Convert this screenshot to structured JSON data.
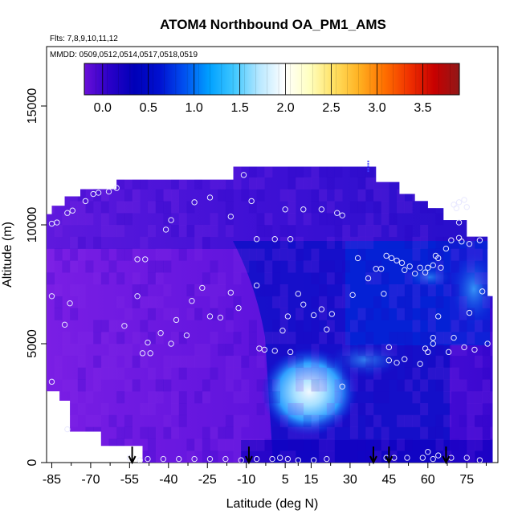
{
  "chart_data": {
    "type": "heatmap",
    "title": "ATOM4 Northbound OA_PM1_AMS",
    "subtitle_line1": "Flts: 7,8,9,10,11,12",
    "subtitle_line2": "MMDD: 0509,0512,0514,0517,0518,0519",
    "xlabel": "Latitude (deg N)",
    "ylabel": "Altitude (m)",
    "xlim": [
      -87,
      87
    ],
    "ylim": [
      0,
      17500
    ],
    "x_ticks": [
      -85,
      -70,
      -55,
      -40,
      -25,
      -10,
      5,
      15,
      30,
      45,
      60,
      75
    ],
    "x_tick_labels": [
      "-85",
      "-70",
      "-55",
      "-40",
      "-25",
      "-10",
      "5",
      "15",
      "30",
      "45",
      "60",
      "75"
    ],
    "x_minor_ticks": [
      -77.5,
      -62.5,
      -47.5,
      -32.5,
      -17.5,
      -2.5,
      10,
      22.5,
      37.5,
      52.5,
      67.5,
      82.5
    ],
    "y_ticks": [
      0,
      5000,
      10000,
      15000
    ],
    "y_tick_labels": [
      "0",
      "5000",
      "10000",
      "15000"
    ],
    "colorbar": {
      "min": -0.2,
      "max": 3.9,
      "ticks": [
        0.0,
        0.5,
        1.0,
        1.5,
        2.0,
        2.5,
        3.0,
        3.5
      ],
      "tick_labels": [
        "0.0",
        "0.5",
        "1.0",
        "1.5",
        "2.0",
        "2.5",
        "3.0",
        "3.5"
      ],
      "colors": [
        "#6a0fd8",
        "#2a00c8",
        "#0000b8",
        "#0010d0",
        "#0050f0",
        "#00a0ff",
        "#40c8ff",
        "#b8e8ff",
        "#ffffff",
        "#ffffc0",
        "#ffe060",
        "#ffb020",
        "#ff7000",
        "#f03000",
        "#c80000",
        "#901818"
      ]
    },
    "arrow_latitudes": [
      -54,
      -9,
      39,
      45,
      67
    ],
    "sample_points": [
      [
        -85,
        10050
      ],
      [
        -83,
        10100
      ],
      [
        -79,
        10500
      ],
      [
        -77,
        10600
      ],
      [
        -72,
        11000
      ],
      [
        -69,
        11300
      ],
      [
        -67,
        11350
      ],
      [
        -63,
        11400
      ],
      [
        -60,
        11550
      ],
      [
        -39,
        10200
      ],
      [
        -41,
        9800
      ],
      [
        -30,
        10950
      ],
      [
        -24,
        11150
      ],
      [
        -11,
        12100
      ],
      [
        -16,
        10350
      ],
      [
        -8,
        11000
      ],
      [
        -6,
        9400
      ],
      [
        1,
        9400
      ],
      [
        7,
        9400
      ],
      [
        5,
        10650
      ],
      [
        12,
        10650
      ],
      [
        19,
        10650
      ],
      [
        25,
        10500
      ],
      [
        27,
        10400
      ],
      [
        -85,
        7000
      ],
      [
        -80,
        5800
      ],
      [
        -78,
        6700
      ],
      [
        -57,
        5750
      ],
      [
        -52,
        8550
      ],
      [
        -49,
        8550
      ],
      [
        -52,
        7000
      ],
      [
        -50,
        4600
      ],
      [
        -48,
        5050
      ],
      [
        -47,
        4600
      ],
      [
        -43,
        5450
      ],
      [
        -39,
        5000
      ],
      [
        -37,
        6000
      ],
      [
        -33,
        5350
      ],
      [
        -31,
        6800
      ],
      [
        -27,
        7350
      ],
      [
        -24,
        6150
      ],
      [
        -20,
        6100
      ],
      [
        -16,
        7150
      ],
      [
        -13,
        6500
      ],
      [
        -6,
        7450
      ],
      [
        -5,
        4800
      ],
      [
        -3,
        4750
      ],
      [
        1,
        4700
      ],
      [
        4,
        5550
      ],
      [
        6,
        6150
      ],
      [
        7,
        4650
      ],
      [
        10,
        7100
      ],
      [
        12,
        6650
      ],
      [
        16,
        6200
      ],
      [
        19,
        6450
      ],
      [
        21,
        5600
      ],
      [
        23,
        6250
      ],
      [
        33,
        8600
      ],
      [
        37,
        7750
      ],
      [
        40,
        8150
      ],
      [
        42,
        8150
      ],
      [
        44,
        8700
      ],
      [
        46,
        8600
      ],
      [
        48,
        8500
      ],
      [
        50,
        8400
      ],
      [
        51,
        8100
      ],
      [
        53,
        8250
      ],
      [
        55,
        7950
      ],
      [
        57,
        8200
      ],
      [
        59,
        8000
      ],
      [
        60,
        8200
      ],
      [
        62,
        8300
      ],
      [
        63,
        8700
      ],
      [
        64,
        8600
      ],
      [
        65,
        8200
      ],
      [
        67,
        9000
      ],
      [
        69,
        9350
      ],
      [
        72,
        9450
      ],
      [
        73,
        9300
      ],
      [
        72,
        10100
      ],
      [
        70,
        10850
      ],
      [
        72,
        10950
      ],
      [
        71,
        10700
      ],
      [
        74,
        11050
      ],
      [
        75,
        10750
      ],
      [
        76,
        9200
      ],
      [
        80,
        9350
      ],
      [
        31,
        7050
      ],
      [
        43,
        7100
      ],
      [
        45,
        4300
      ],
      [
        45,
        4850
      ],
      [
        48,
        4200
      ],
      [
        51,
        4350
      ],
      [
        57,
        4150
      ],
      [
        59,
        4800
      ],
      [
        60,
        4650
      ],
      [
        62,
        5250
      ],
      [
        62,
        5000
      ],
      [
        64,
        6150
      ],
      [
        68,
        4650
      ],
      [
        70,
        5250
      ],
      [
        74,
        4850
      ],
      [
        76,
        6300
      ],
      [
        78,
        4750
      ],
      [
        81,
        7200
      ],
      [
        83,
        5000
      ],
      [
        -85,
        3400
      ],
      [
        -79,
        1400
      ],
      [
        -55,
        200
      ],
      [
        -51,
        100
      ],
      [
        -48,
        150
      ],
      [
        -42,
        150
      ],
      [
        -36,
        150
      ],
      [
        -30,
        150
      ],
      [
        -24,
        150
      ],
      [
        -18,
        150
      ],
      [
        -12,
        100
      ],
      [
        -6,
        150
      ],
      [
        0,
        150
      ],
      [
        3,
        200
      ],
      [
        6,
        150
      ],
      [
        10,
        100
      ],
      [
        16,
        100
      ],
      [
        21,
        150
      ],
      [
        27,
        3200
      ],
      [
        44,
        200
      ],
      [
        47,
        200
      ],
      [
        52,
        200
      ],
      [
        58,
        200
      ],
      [
        60,
        450
      ],
      [
        62,
        150
      ],
      [
        64,
        300
      ],
      [
        69,
        200
      ],
      [
        75,
        200
      ],
      [
        80,
        100
      ]
    ]
  }
}
